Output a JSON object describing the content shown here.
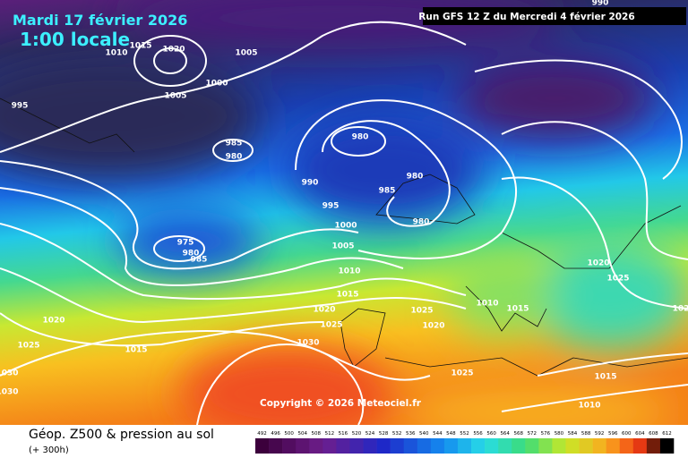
{
  "header": {
    "date": "Mardi 17 février 2026",
    "time": "1:00 locale",
    "run": "Run GFS 12 Z du Mercredi 4 février 2026"
  },
  "copyright": "Copyright © 2026 Meteociel.fr",
  "footer": {
    "title": "Géop. Z500 & pression au sol",
    "lead": "(+ 300h)"
  },
  "isobar_labels": [
    "1015",
    "1010",
    "1020",
    "1005",
    "1000",
    "1005",
    "995",
    "985",
    "980",
    "980",
    "980",
    "985",
    "980",
    "990",
    "995",
    "1000",
    "1005",
    "1010",
    "975",
    "980",
    "985",
    "1015",
    "1020",
    "1025",
    "1030",
    "1025",
    "1020",
    "1010",
    "1015",
    "1020",
    "1025",
    "1020",
    "1025",
    "1015",
    "1030",
    "1030",
    "1025",
    "1015",
    "1010",
    "102",
    "990"
  ],
  "scale_labels": [
    "492",
    "496",
    "500",
    "504",
    "508",
    "512",
    "516",
    "520",
    "524",
    "528",
    "532",
    "536",
    "540",
    "544",
    "548",
    "552",
    "556",
    "560",
    "564",
    "568",
    "572",
    "576",
    "580",
    "584",
    "588",
    "592",
    "596",
    "600",
    "604",
    "608",
    "612"
  ]
}
